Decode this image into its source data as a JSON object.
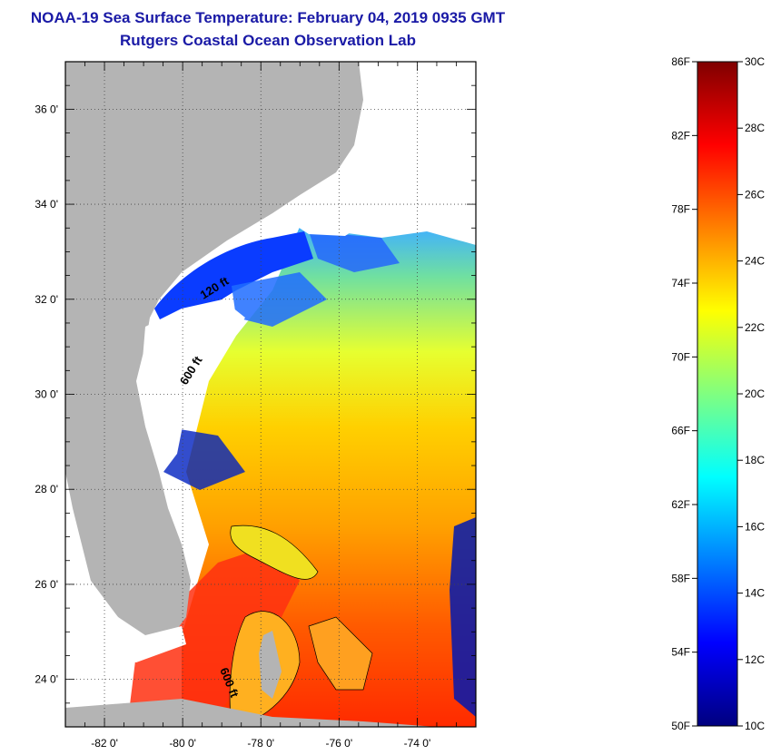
{
  "title": {
    "line1": "NOAA-19 Sea Surface Temperature:  February 04, 2019 0935 GMT",
    "line2": "Rutgers Coastal Ocean Observation Lab"
  },
  "map": {
    "lat_labels": [
      "36 0'",
      "34 0'",
      "32 0'",
      "30 0'",
      "28 0'",
      "26 0'",
      "24 0'"
    ],
    "lat_values": [
      36,
      34,
      32,
      30,
      28,
      26,
      24
    ],
    "lon_labels": [
      "-82 0'",
      "-80 0'",
      "-78 0'",
      "-76 0'",
      "-74 0'"
    ],
    "lon_values": [
      -82,
      -80,
      -78,
      -76,
      -74
    ],
    "lat_range": [
      23,
      37
    ],
    "lon_range": [
      -83,
      -72.5
    ],
    "contour_labels": [
      "120 ft",
      "600 ft",
      "600 ft"
    ],
    "colors": {
      "land": "#b4b4b4",
      "cloud_mask": "#ffffff",
      "grid": "#555555"
    }
  },
  "colorbar": {
    "fahrenheit_labels": [
      "86F",
      "82F",
      "78F",
      "74F",
      "70F",
      "66F",
      "62F",
      "58F",
      "54F",
      "50F"
    ],
    "celsius_labels": [
      "30C",
      "28C",
      "26C",
      "24C",
      "22C",
      "20C",
      "18C",
      "16C",
      "14C",
      "12C",
      "10C"
    ],
    "range_c": [
      10,
      30
    ],
    "colors": [
      "#00007f",
      "#0000ff",
      "#0080ff",
      "#00ffff",
      "#80ff80",
      "#ffff00",
      "#ff8000",
      "#ff0000",
      "#7f0000"
    ]
  }
}
